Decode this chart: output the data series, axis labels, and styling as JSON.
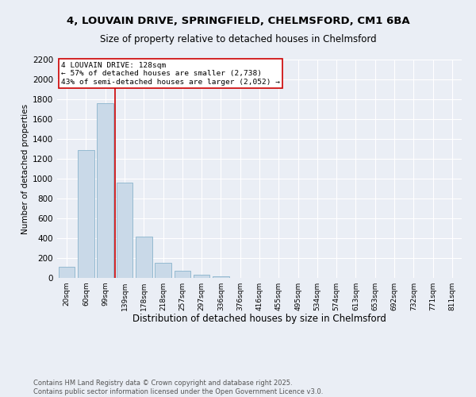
{
  "title_line1": "4, LOUVAIN DRIVE, SPRINGFIELD, CHELMSFORD, CM1 6BA",
  "title_line2": "Size of property relative to detached houses in Chelmsford",
  "xlabel": "Distribution of detached houses by size in Chelmsford",
  "ylabel": "Number of detached properties",
  "categories": [
    "20sqm",
    "60sqm",
    "99sqm",
    "139sqm",
    "178sqm",
    "218sqm",
    "257sqm",
    "297sqm",
    "336sqm",
    "376sqm",
    "416sqm",
    "455sqm",
    "495sqm",
    "534sqm",
    "574sqm",
    "613sqm",
    "653sqm",
    "692sqm",
    "732sqm",
    "771sqm",
    "811sqm"
  ],
  "values": [
    113,
    1285,
    1760,
    960,
    420,
    153,
    70,
    33,
    18,
    0,
    0,
    0,
    0,
    0,
    0,
    0,
    0,
    0,
    0,
    0,
    0
  ],
  "bar_color": "#c9d9e8",
  "bar_edge_color": "#8ab4cc",
  "vline_color": "#cc0000",
  "annotation_text": "4 LOUVAIN DRIVE: 128sqm\n← 57% of detached houses are smaller (2,738)\n43% of semi-detached houses are larger (2,052) →",
  "annotation_box_color": "#cc0000",
  "ylim": [
    0,
    2200
  ],
  "yticks": [
    0,
    200,
    400,
    600,
    800,
    1000,
    1200,
    1400,
    1600,
    1800,
    2000,
    2200
  ],
  "bg_color": "#eaeef5",
  "plot_bg_color": "#eaeef5",
  "footer_line1": "Contains HM Land Registry data © Crown copyright and database right 2025.",
  "footer_line2": "Contains public sector information licensed under the Open Government Licence v3.0.",
  "title_fontsize": 9.5,
  "subtitle_fontsize": 8.5,
  "xlabel_fontsize": 8.5,
  "ylabel_fontsize": 7.5,
  "tick_fontsize": 6.5,
  "footer_fontsize": 6,
  "annotation_fontsize": 6.8
}
